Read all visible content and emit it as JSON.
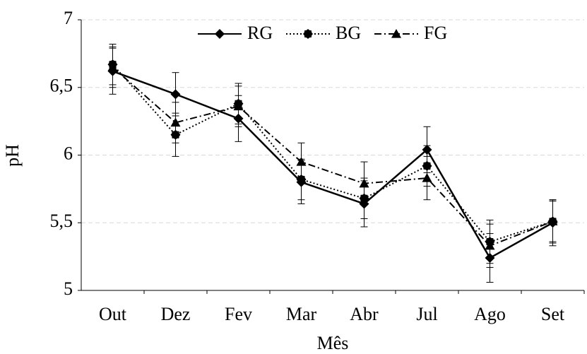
{
  "chart_data": {
    "type": "line",
    "xlabel": "Mês",
    "ylabel": "pH",
    "categories": [
      "Out",
      "Dez",
      "Fev",
      "Mar",
      "Abr",
      "Jul",
      "Ago",
      "Set"
    ],
    "series": [
      {
        "name": "RG",
        "color": "#000000",
        "dash": "solid",
        "marker": "diamond",
        "values": [
          6.62,
          6.45,
          6.27,
          5.8,
          5.64,
          6.04,
          5.24,
          5.5
        ],
        "errors": [
          0.17,
          0.16,
          0.17,
          0.16,
          0.17,
          0.17,
          0.18,
          0.17
        ]
      },
      {
        "name": "BG",
        "color": "#000000",
        "dash": "dotted",
        "marker": "star",
        "values": [
          6.67,
          6.15,
          6.38,
          5.82,
          5.68,
          5.92,
          5.36,
          5.51
        ],
        "errors": [
          0.15,
          0.16,
          0.15,
          0.15,
          0.15,
          0.15,
          0.16,
          0.15
        ]
      },
      {
        "name": "FG",
        "color": "#000000",
        "dash": "dashdot",
        "marker": "triangle",
        "values": [
          6.65,
          6.24,
          6.36,
          5.95,
          5.79,
          5.83,
          5.33,
          5.51
        ],
        "errors": [
          0.15,
          0.15,
          0.15,
          0.14,
          0.16,
          0.16,
          0.16,
          0.16
        ]
      }
    ],
    "ylim": [
      5,
      7
    ],
    "yticks": [
      5,
      {
        "value": 5.5,
        "label": "5,5"
      },
      6,
      {
        "value": 6.5,
        "label": "6,5"
      },
      7
    ],
    "grid": true,
    "legend": "top"
  }
}
